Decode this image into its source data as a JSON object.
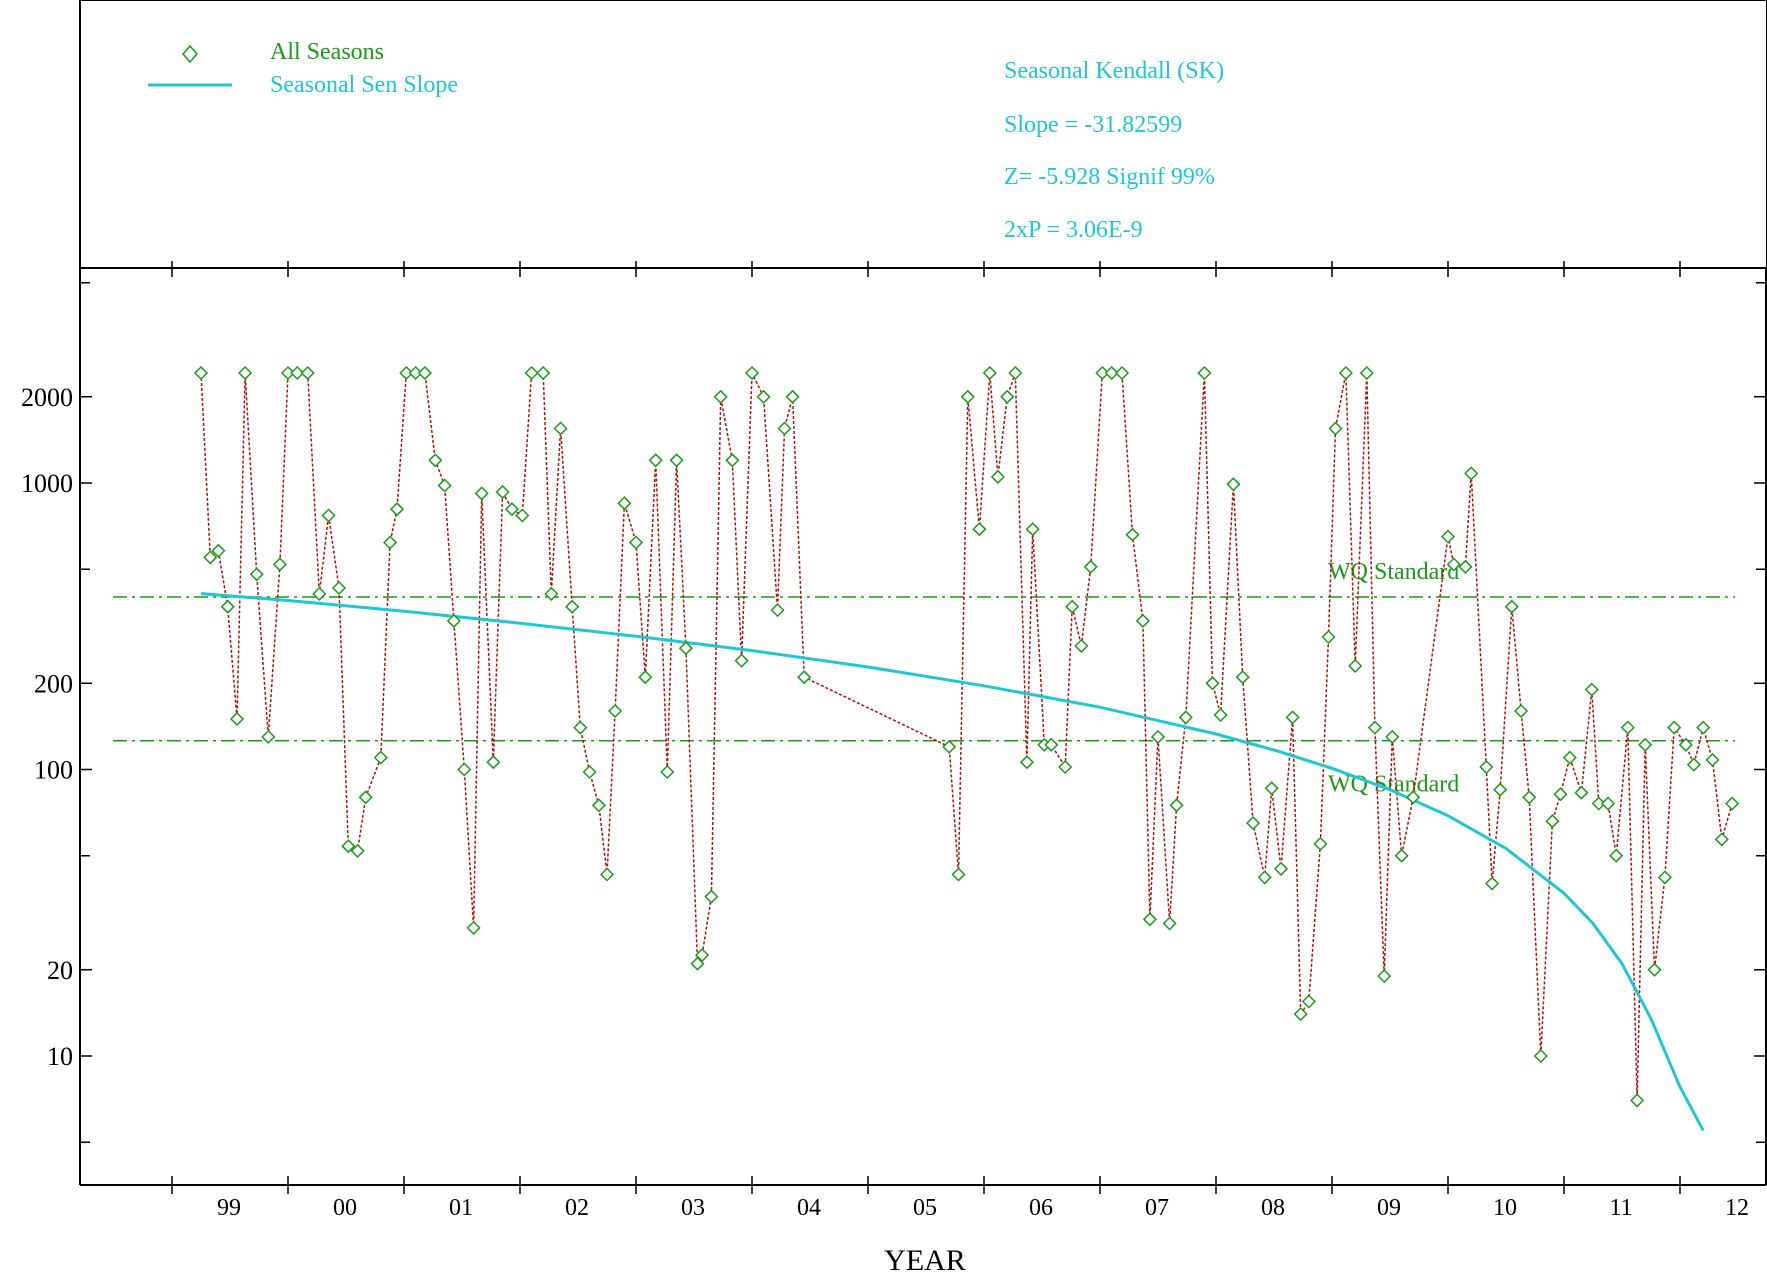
{
  "legend": {
    "items": [
      {
        "label": "All Seasons",
        "color": "#1a9a1a",
        "marker": "diamond-icon"
      },
      {
        "label": "Seasonal Sen Slope",
        "color": "#1ec8d0",
        "marker": "line-icon"
      }
    ]
  },
  "stats": {
    "title": "Seasonal Kendall (SK)",
    "slope": "Slope = -31.82599",
    "z": "Z= -5.928  Signif 99%",
    "p": "2xP = 3.06E-9",
    "color": "#1ec8d0"
  },
  "chart_data": {
    "type": "scatter",
    "xlabel": "YEAR",
    "ylabel": "",
    "yscale": "log",
    "ylim": [
      4.5,
      5000
    ],
    "xlim": [
      1998.5,
      2012.5
    ],
    "x_ticks": [
      {
        "label": "99",
        "value": 1999
      },
      {
        "label": "00",
        "value": 2000
      },
      {
        "label": "01",
        "value": 2001
      },
      {
        "label": "02",
        "value": 2002
      },
      {
        "label": "03",
        "value": 2003
      },
      {
        "label": "04",
        "value": 2004
      },
      {
        "label": "05",
        "value": 2005
      },
      {
        "label": "06",
        "value": 2006
      },
      {
        "label": "07",
        "value": 2007
      },
      {
        "label": "08",
        "value": 2008
      },
      {
        "label": "09",
        "value": 2009
      },
      {
        "label": "10",
        "value": 2010
      },
      {
        "label": "11",
        "value": 2011
      },
      {
        "label": "12",
        "value": 2012
      }
    ],
    "y_ticks": [
      {
        "label": "10",
        "value": 10
      },
      {
        "label": "20",
        "value": 20
      },
      {
        "label": "100",
        "value": 100
      },
      {
        "label": "200",
        "value": 200
      },
      {
        "label": "1000",
        "value": 1000
      },
      {
        "label": "2000",
        "value": 2000
      }
    ],
    "reference_lines": [
      {
        "label": "WQ Standard",
        "value": 400,
        "color": "#1a9a1a"
      },
      {
        "label": "WQ Standard",
        "value": 126,
        "color": "#1a9a1a"
      }
    ],
    "series": [
      {
        "name": "All Seasons",
        "kind": "markers",
        "color": "#1a9a1a",
        "line_color": "#b01010",
        "points": [
          [
            1999.25,
            2420
          ],
          [
            1999.33,
            550
          ],
          [
            1999.4,
            580
          ],
          [
            1999.48,
            370
          ],
          [
            1999.56,
            150
          ],
          [
            1999.63,
            2420
          ],
          [
            1999.73,
            480
          ],
          [
            1999.83,
            130
          ],
          [
            1999.93,
            520
          ],
          [
            2000.0,
            2420
          ],
          [
            2000.08,
            2420
          ],
          [
            2000.17,
            2420
          ],
          [
            2000.27,
            410
          ],
          [
            2000.35,
            770
          ],
          [
            2000.44,
            430
          ],
          [
            2000.52,
            54
          ],
          [
            2000.6,
            52
          ],
          [
            2000.67,
            80
          ],
          [
            2000.8,
            110
          ],
          [
            2000.88,
            620
          ],
          [
            2000.94,
            810
          ],
          [
            2001.02,
            2420
          ],
          [
            2001.1,
            2420
          ],
          [
            2001.18,
            2420
          ],
          [
            2001.27,
            1200
          ],
          [
            2001.35,
            980
          ],
          [
            2001.43,
            330
          ],
          [
            2001.52,
            100
          ],
          [
            2001.6,
            28
          ],
          [
            2001.67,
            920
          ],
          [
            2001.77,
            106
          ],
          [
            2001.85,
            930
          ],
          [
            2001.93,
            810
          ],
          [
            2002.02,
            770
          ],
          [
            2002.1,
            2420
          ],
          [
            2002.2,
            2420
          ],
          [
            2002.27,
            410
          ],
          [
            2002.35,
            1550
          ],
          [
            2002.45,
            370
          ],
          [
            2002.52,
            140
          ],
          [
            2002.6,
            98
          ],
          [
            2002.68,
            75
          ],
          [
            2002.75,
            43
          ],
          [
            2002.82,
            160
          ],
          [
            2002.9,
            850
          ],
          [
            2003.0,
            620
          ],
          [
            2003.08,
            210
          ],
          [
            2003.17,
            1200
          ],
          [
            2003.27,
            98
          ],
          [
            2003.35,
            1200
          ],
          [
            2003.43,
            265
          ],
          [
            2003.53,
            21
          ],
          [
            2003.57,
            22.5
          ],
          [
            2003.65,
            36
          ],
          [
            2003.73,
            2000
          ],
          [
            2003.83,
            1200
          ],
          [
            2003.91,
            240
          ],
          [
            2004.0,
            2420
          ],
          [
            2004.1,
            2000
          ],
          [
            2004.22,
            360
          ],
          [
            2004.28,
            1550
          ],
          [
            2004.35,
            2000
          ],
          [
            2004.45,
            210
          ],
          [
            2005.7,
            120
          ],
          [
            2005.78,
            43
          ],
          [
            2005.86,
            2000
          ],
          [
            2005.96,
            690
          ],
          [
            2006.05,
            2420
          ],
          [
            2006.12,
            1050
          ],
          [
            2006.2,
            2000
          ],
          [
            2006.27,
            2420
          ],
          [
            2006.37,
            106
          ],
          [
            2006.42,
            690
          ],
          [
            2006.52,
            122
          ],
          [
            2006.58,
            122
          ],
          [
            2006.7,
            102
          ],
          [
            2006.76,
            370
          ],
          [
            2006.84,
            270
          ],
          [
            2006.92,
            510
          ],
          [
            2007.02,
            2420
          ],
          [
            2007.1,
            2420
          ],
          [
            2007.19,
            2420
          ],
          [
            2007.28,
            660
          ],
          [
            2007.37,
            330
          ],
          [
            2007.43,
            30
          ],
          [
            2007.5,
            130
          ],
          [
            2007.6,
            29
          ],
          [
            2007.66,
            75
          ],
          [
            2007.74,
            152
          ],
          [
            2007.9,
            2420
          ],
          [
            2007.97,
            200
          ],
          [
            2008.04,
            155
          ],
          [
            2008.15,
            990
          ],
          [
            2008.23,
            210
          ],
          [
            2008.32,
            65
          ],
          [
            2008.42,
            42
          ],
          [
            2008.48,
            86
          ],
          [
            2008.56,
            45
          ],
          [
            2008.66,
            152
          ],
          [
            2008.73,
            14
          ],
          [
            2008.8,
            15.5
          ],
          [
            2008.9,
            55
          ],
          [
            2008.97,
            290
          ],
          [
            2009.03,
            1550
          ],
          [
            2009.12,
            2420
          ],
          [
            2009.2,
            230
          ],
          [
            2009.3,
            2420
          ],
          [
            2009.37,
            140
          ],
          [
            2009.45,
            19
          ],
          [
            2009.52,
            130
          ],
          [
            2009.6,
            50
          ],
          [
            2009.7,
            80
          ],
          [
            2010.0,
            650
          ],
          [
            2010.05,
            520
          ],
          [
            2010.15,
            510
          ],
          [
            2010.2,
            1080
          ],
          [
            2010.33,
            102
          ],
          [
            2010.38,
            40
          ],
          [
            2010.45,
            85
          ],
          [
            2010.55,
            370
          ],
          [
            2010.63,
            160
          ],
          [
            2010.7,
            80
          ],
          [
            2010.8,
            10
          ],
          [
            2010.9,
            66
          ],
          [
            2010.97,
            82
          ],
          [
            2011.05,
            110
          ],
          [
            2011.15,
            83
          ],
          [
            2011.24,
            190
          ],
          [
            2011.3,
            76
          ],
          [
            2011.38,
            76
          ],
          [
            2011.45,
            50
          ],
          [
            2011.55,
            140
          ],
          [
            2011.63,
            7
          ],
          [
            2011.7,
            122
          ],
          [
            2011.78,
            20
          ],
          [
            2011.87,
            42
          ],
          [
            2011.95,
            140
          ],
          [
            2012.05,
            122
          ],
          [
            2012.12,
            104
          ],
          [
            2012.2,
            140
          ],
          [
            2012.28,
            108
          ],
          [
            2012.36,
            57
          ],
          [
            2012.45,
            76
          ]
        ]
      },
      {
        "name": "Seasonal Sen Slope",
        "kind": "line",
        "color": "#1ec8d0",
        "points": [
          [
            1999.25,
            411
          ],
          [
            2000.0,
            389
          ],
          [
            2001.0,
            357
          ],
          [
            2002.0,
            324
          ],
          [
            2003.0,
            292
          ],
          [
            2004.0,
            260
          ],
          [
            2005.0,
            228
          ],
          [
            2006.0,
            196
          ],
          [
            2007.0,
            165
          ],
          [
            2008.0,
            133
          ],
          [
            2008.5,
            117
          ],
          [
            2009.0,
            101
          ],
          [
            2009.5,
            85
          ],
          [
            2010.0,
            69
          ],
          [
            2010.5,
            53
          ],
          [
            2011.0,
            37
          ],
          [
            2011.25,
            29
          ],
          [
            2011.5,
            21
          ],
          [
            2011.75,
            13.5
          ],
          [
            2012.0,
            7.8
          ],
          [
            2012.2,
            5.5
          ]
        ]
      }
    ]
  }
}
